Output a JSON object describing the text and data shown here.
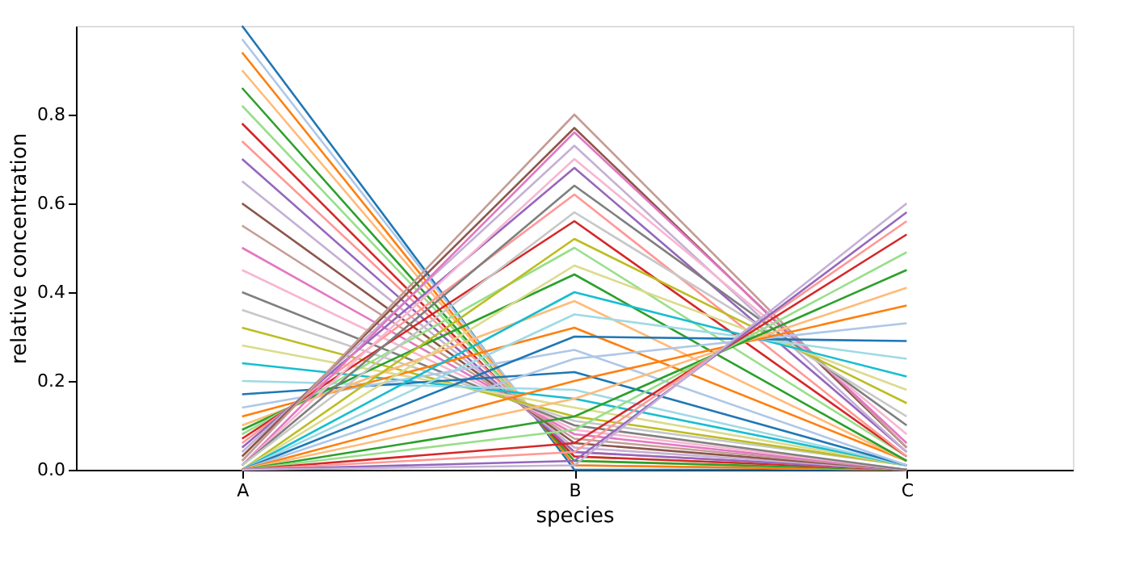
{
  "chart_data": {
    "type": "line",
    "xlabel": "species",
    "ylabel": "relative concentration",
    "categories": [
      "A",
      "B",
      "C"
    ],
    "ylim": [
      0,
      1.0
    ],
    "yticks": [
      {
        "value": 0,
        "label": "0.0"
      },
      {
        "value": 0.2,
        "label": "0.2"
      },
      {
        "value": 0.4,
        "label": "0.4"
      },
      {
        "value": 0.6,
        "label": "0.6"
      },
      {
        "value": 0.8,
        "label": "0.8"
      }
    ],
    "grid": false,
    "legend": false,
    "marker": "none",
    "line_style": "solid",
    "series": [
      {
        "color": "#1f77b4",
        "values": [
          1.0,
          0,
          0
        ]
      },
      {
        "color": "#aec7e8",
        "values": [
          0.97,
          0.01,
          0
        ]
      },
      {
        "color": "#ff7f0e",
        "values": [
          0.94,
          0.01,
          0
        ]
      },
      {
        "color": "#ffbb78",
        "values": [
          0.9,
          0.02,
          0
        ]
      },
      {
        "color": "#2ca02c",
        "values": [
          0.86,
          0.02,
          0
        ]
      },
      {
        "color": "#98df8a",
        "values": [
          0.82,
          0.03,
          0
        ]
      },
      {
        "color": "#d62728",
        "values": [
          0.78,
          0.03,
          0
        ]
      },
      {
        "color": "#ff9896",
        "values": [
          0.74,
          0.04,
          0
        ]
      },
      {
        "color": "#9467bd",
        "values": [
          0.7,
          0.04,
          0
        ]
      },
      {
        "color": "#c5b0d5",
        "values": [
          0.65,
          0.05,
          0
        ]
      },
      {
        "color": "#8c564b",
        "values": [
          0.6,
          0.06,
          0
        ]
      },
      {
        "color": "#c49c94",
        "values": [
          0.55,
          0.07,
          0
        ]
      },
      {
        "color": "#e377c2",
        "values": [
          0.5,
          0.08,
          0
        ]
      },
      {
        "color": "#f7b6d2",
        "values": [
          0.45,
          0.09,
          0
        ]
      },
      {
        "color": "#7f7f7f",
        "values": [
          0.4,
          0.1,
          0
        ]
      },
      {
        "color": "#c7c7c7",
        "values": [
          0.36,
          0.11,
          0.01
        ]
      },
      {
        "color": "#bcbd22",
        "values": [
          0.32,
          0.12,
          0.01
        ]
      },
      {
        "color": "#dbdb8d",
        "values": [
          0.28,
          0.14,
          0.01
        ]
      },
      {
        "color": "#17becf",
        "values": [
          0.24,
          0.16,
          0.01
        ]
      },
      {
        "color": "#9edae5",
        "values": [
          0.2,
          0.18,
          0.01
        ]
      },
      {
        "color": "#1f77b4",
        "values": [
          0.17,
          0.22,
          0.01
        ]
      },
      {
        "color": "#aec7e8",
        "values": [
          0.14,
          0.27,
          0.01
        ]
      },
      {
        "color": "#ff7f0e",
        "values": [
          0.12,
          0.32,
          0.02
        ]
      },
      {
        "color": "#ffbb78",
        "values": [
          0.1,
          0.38,
          0.02
        ]
      },
      {
        "color": "#2ca02c",
        "values": [
          0.09,
          0.44,
          0.02
        ]
      },
      {
        "color": "#98df8a",
        "values": [
          0.08,
          0.5,
          0.03
        ]
      },
      {
        "color": "#d62728",
        "values": [
          0.07,
          0.56,
          0.03
        ]
      },
      {
        "color": "#ff9896",
        "values": [
          0.06,
          0.62,
          0.03
        ]
      },
      {
        "color": "#9467bd",
        "values": [
          0.05,
          0.68,
          0.04
        ]
      },
      {
        "color": "#c5b0d5",
        "values": [
          0.04,
          0.73,
          0.04
        ]
      },
      {
        "color": "#8c564b",
        "values": [
          0.03,
          0.77,
          0.05
        ]
      },
      {
        "color": "#c49c94",
        "values": [
          0.02,
          0.8,
          0.05
        ]
      },
      {
        "color": "#e377c2",
        "values": [
          0.01,
          0.76,
          0.06
        ]
      },
      {
        "color": "#f7b6d2",
        "values": [
          0.01,
          0.7,
          0.08
        ]
      },
      {
        "color": "#7f7f7f",
        "values": [
          0.01,
          0.64,
          0.1
        ]
      },
      {
        "color": "#c7c7c7",
        "values": [
          0.01,
          0.58,
          0.12
        ]
      },
      {
        "color": "#bcbd22",
        "values": [
          0,
          0.52,
          0.15
        ]
      },
      {
        "color": "#dbdb8d",
        "values": [
          0,
          0.46,
          0.18
        ]
      },
      {
        "color": "#17becf",
        "values": [
          0,
          0.4,
          0.21
        ]
      },
      {
        "color": "#9edae5",
        "values": [
          0,
          0.35,
          0.25
        ]
      },
      {
        "color": "#1f77b4",
        "values": [
          0,
          0.3,
          0.29
        ]
      },
      {
        "color": "#aec7e8",
        "values": [
          0,
          0.25,
          0.33
        ]
      },
      {
        "color": "#ff7f0e",
        "values": [
          0,
          0.2,
          0.37
        ]
      },
      {
        "color": "#ffbb78",
        "values": [
          0,
          0.16,
          0.41
        ]
      },
      {
        "color": "#2ca02c",
        "values": [
          0,
          0.12,
          0.45
        ]
      },
      {
        "color": "#98df8a",
        "values": [
          0,
          0.09,
          0.49
        ]
      },
      {
        "color": "#d62728",
        "values": [
          0,
          0.06,
          0.53
        ]
      },
      {
        "color": "#ff9896",
        "values": [
          0,
          0.04,
          0.56
        ]
      },
      {
        "color": "#9467bd",
        "values": [
          0,
          0.02,
          0.58
        ]
      },
      {
        "color": "#c5b0d5",
        "values": [
          0,
          0.01,
          0.6
        ]
      }
    ]
  }
}
